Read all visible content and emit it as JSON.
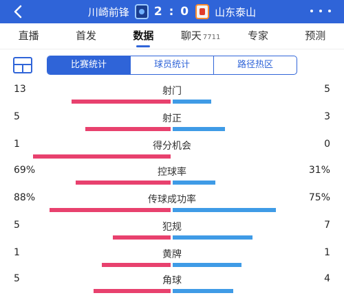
{
  "header": {
    "home_team": "川崎前锋",
    "away_team": "山东泰山",
    "score": "2 : 0",
    "home_badge": "kawasaki-frontale-badge",
    "away_badge": "shandong-taishan-badge"
  },
  "tabs": [
    {
      "label": "直播",
      "count": ""
    },
    {
      "label": "首发",
      "count": ""
    },
    {
      "label": "数据",
      "count": "",
      "active": true
    },
    {
      "label": "聊天",
      "count": "7711"
    },
    {
      "label": "专家",
      "count": ""
    },
    {
      "label": "预测",
      "count": ""
    }
  ],
  "subtabs": [
    {
      "label": "比赛统计",
      "active": true
    },
    {
      "label": "球员统计"
    },
    {
      "label": "路径热区"
    }
  ],
  "colors": {
    "brand": "#2f64d8",
    "home_bar": "#e8416e",
    "away_bar": "#3f9be6"
  },
  "stats": [
    {
      "label": "射门",
      "home": "13",
      "away": "5",
      "home_share": 0.72,
      "away_share": 0.28
    },
    {
      "label": "射正",
      "home": "5",
      "away": "3",
      "home_share": 0.62,
      "away_share": 0.38
    },
    {
      "label": "得分机会",
      "home": "1",
      "away": "0",
      "home_share": 1.0,
      "away_share": 0.0
    },
    {
      "label": "控球率",
      "home": "69%",
      "away": "31%",
      "home_share": 0.69,
      "away_share": 0.31
    },
    {
      "label": "传球成功率",
      "home": "88%",
      "away": "75%",
      "home_share": 0.88,
      "away_share": 0.75
    },
    {
      "label": "犯规",
      "home": "5",
      "away": "7",
      "home_share": 0.42,
      "away_share": 0.58
    },
    {
      "label": "黄牌",
      "home": "1",
      "away": "1",
      "home_share": 0.5,
      "away_share": 0.5
    },
    {
      "label": "角球",
      "home": "5",
      "away": "4",
      "home_share": 0.56,
      "away_share": 0.44
    }
  ]
}
